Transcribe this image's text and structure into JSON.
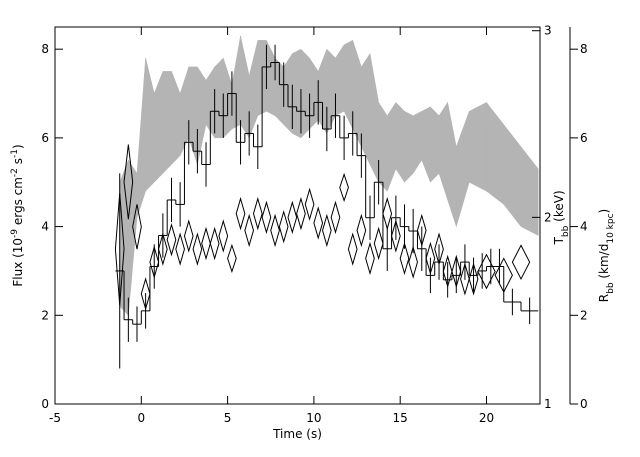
{
  "chart_data": {
    "type": "multi-axis",
    "xlabel": "Time (s)",
    "ylabel": [
      {
        "text": "Flux (10"
      },
      {
        "text": "-9",
        "shift": "super"
      },
      {
        "text": " ergs cm"
      },
      {
        "text": "-2",
        "shift": "super"
      },
      {
        "text": " s"
      },
      {
        "text": "-1",
        "shift": "super"
      },
      {
        "text": ")"
      }
    ],
    "y2label": [
      {
        "text": "T"
      },
      {
        "text": "bb",
        "shift": "sub"
      },
      {
        "text": " (keV)"
      }
    ],
    "y3label": [
      {
        "text": "R"
      },
      {
        "text": "bb",
        "shift": "sub"
      },
      {
        "text": " (km/d"
      },
      {
        "text": "10 kpc",
        "shift": "sub"
      },
      {
        "text": ")"
      }
    ],
    "xlim": [
      -5,
      23.1
    ],
    "xticks": [
      -5,
      0,
      5,
      10,
      15,
      20
    ],
    "ylim": [
      0,
      8.5
    ],
    "yticks": [
      0,
      2,
      4,
      6,
      8
    ],
    "y2lim": [
      1,
      3.02
    ],
    "y2ticks": [
      1,
      2,
      3
    ],
    "y3lim": [
      0,
      8.5
    ],
    "y3ticks": [
      0,
      2,
      4,
      6,
      8
    ],
    "flux": {
      "axis": "y",
      "color": "#000000",
      "x": [
        -1.25,
        -0.75,
        -0.25,
        0.25,
        0.75,
        1.25,
        1.75,
        2.25,
        2.75,
        3.25,
        3.75,
        4.25,
        4.75,
        5.25,
        5.75,
        6.25,
        6.75,
        7.25,
        7.75,
        8.25,
        8.75,
        9.25,
        9.75,
        10.25,
        10.75,
        11.25,
        11.75,
        12.25,
        12.75,
        13.25,
        13.75,
        14.25,
        14.75,
        15.25,
        15.75,
        16.25,
        16.75,
        17.25,
        17.75,
        18.25,
        18.75,
        19.25,
        19.75,
        20.25,
        20.75,
        21.5,
        22.5
      ],
      "widths": [
        0.5,
        0.5,
        0.5,
        0.5,
        0.5,
        0.5,
        0.5,
        0.5,
        0.5,
        0.5,
        0.5,
        0.5,
        0.5,
        0.5,
        0.5,
        0.5,
        0.5,
        0.5,
        0.5,
        0.5,
        0.5,
        0.5,
        0.5,
        0.5,
        0.5,
        0.5,
        0.5,
        0.5,
        0.5,
        0.5,
        0.5,
        0.5,
        0.5,
        0.5,
        0.5,
        0.5,
        0.5,
        0.5,
        0.5,
        0.5,
        0.5,
        0.5,
        0.5,
        0.5,
        0.5,
        1,
        1
      ],
      "values": [
        3.0,
        1.9,
        1.8,
        2.1,
        3.1,
        3.8,
        4.6,
        4.5,
        5.9,
        5.7,
        5.4,
        6.6,
        6.5,
        7.0,
        5.9,
        6.1,
        5.8,
        7.6,
        7.7,
        7.2,
        6.7,
        6.6,
        6.5,
        6.8,
        6.2,
        6.5,
        6.0,
        6.1,
        5.6,
        4.2,
        5.0,
        3.5,
        4.2,
        4.0,
        3.9,
        3.5,
        2.9,
        3.2,
        2.8,
        2.9,
        3.2,
        2.9,
        3.0,
        3.1,
        3.1,
        2.3,
        2.1
      ],
      "errors": [
        2.2,
        0.5,
        0.4,
        0.4,
        0.5,
        0.5,
        0.5,
        0.5,
        0.5,
        0.5,
        0.5,
        0.5,
        0.5,
        0.5,
        0.5,
        0.5,
        0.5,
        0.5,
        0.4,
        0.5,
        0.5,
        0.5,
        0.5,
        0.5,
        0.5,
        0.5,
        0.5,
        0.5,
        0.5,
        0.5,
        0.5,
        0.5,
        0.5,
        0.5,
        0.5,
        0.5,
        0.4,
        0.4,
        0.4,
        0.4,
        0.4,
        0.4,
        0.4,
        0.4,
        0.4,
        0.3,
        0.3
      ]
    },
    "radius": {
      "axis": "y3",
      "color": "#b4b4b4",
      "x": [
        -1.25,
        -0.75,
        -0.25,
        0.25,
        0.75,
        1.25,
        1.75,
        2.25,
        2.75,
        3.25,
        3.75,
        4.25,
        4.75,
        5.25,
        5.75,
        6.25,
        6.75,
        7.25,
        7.75,
        8.25,
        8.75,
        9.25,
        9.75,
        10.25,
        10.75,
        11.25,
        11.75,
        12.25,
        12.75,
        13.25,
        13.75,
        14.25,
        14.75,
        15.25,
        15.75,
        16.25,
        16.75,
        17.25,
        17.75,
        18.25,
        19,
        20,
        21,
        22,
        23
      ],
      "low": [
        2.2,
        2.0,
        4.2,
        4.8,
        5.0,
        5.2,
        5.4,
        5.6,
        6.0,
        5.4,
        6.3,
        6.0,
        6.0,
        6.2,
        6.3,
        6.0,
        6.5,
        6.6,
        6.5,
        6.3,
        6.1,
        6.0,
        6.2,
        6.4,
        6.1,
        6.5,
        6.6,
        6.2,
        5.8,
        5.4,
        5.0,
        4.8,
        5.3,
        5.0,
        5.2,
        5.5,
        5.0,
        5.2,
        4.6,
        4.0,
        5.0,
        4.8,
        4.5,
        4.0,
        3.8
      ],
      "high": [
        5.0,
        5.5,
        5.2,
        7.8,
        7.0,
        7.5,
        7.5,
        7.0,
        7.6,
        7.6,
        7.3,
        7.6,
        7.8,
        7.2,
        8.3,
        7.4,
        8.2,
        8.2,
        7.8,
        7.6,
        7.9,
        8.0,
        7.8,
        7.5,
        8.0,
        7.8,
        8.1,
        8.2,
        7.6,
        7.9,
        6.8,
        6.5,
        6.8,
        6.6,
        6.5,
        6.6,
        6.7,
        6.5,
        6.8,
        5.8,
        6.6,
        6.8,
        6.3,
        5.8,
        5.3
      ]
    },
    "temperature": {
      "axis": "y2",
      "color": "#000000",
      "x": [
        -1.25,
        -0.75,
        -0.25,
        0.25,
        0.75,
        1.25,
        1.75,
        2.25,
        2.75,
        3.25,
        3.75,
        4.25,
        4.75,
        5.25,
        5.75,
        6.25,
        6.75,
        7.25,
        7.75,
        8.25,
        8.75,
        9.25,
        9.75,
        10.25,
        10.75,
        11.25,
        11.75,
        12.25,
        12.75,
        13.25,
        13.75,
        14.25,
        14.75,
        15.25,
        15.75,
        16.25,
        16.75,
        17.25,
        17.75,
        18.25,
        18.75,
        19.25,
        20,
        21,
        22
      ],
      "widths": [
        0.5,
        0.5,
        0.5,
        0.5,
        0.5,
        0.5,
        0.5,
        0.5,
        0.5,
        0.5,
        0.5,
        0.5,
        0.5,
        0.5,
        0.5,
        0.5,
        0.5,
        0.5,
        0.5,
        0.5,
        0.5,
        0.5,
        0.5,
        0.5,
        0.5,
        0.5,
        0.5,
        0.5,
        0.5,
        0.5,
        0.5,
        0.5,
        0.5,
        0.5,
        0.5,
        0.5,
        0.5,
        0.5,
        0.5,
        0.5,
        0.5,
        0.5,
        1,
        1,
        1
      ],
      "values": [
        1.83,
        2.19,
        1.95,
        1.59,
        1.76,
        1.83,
        1.88,
        1.83,
        1.9,
        1.83,
        1.86,
        1.86,
        1.9,
        1.78,
        2.02,
        1.93,
        2.02,
        2.0,
        1.93,
        1.95,
        2.0,
        2.02,
        2.07,
        1.97,
        1.93,
        2.0,
        2.16,
        1.83,
        1.93,
        1.78,
        1.86,
        2.02,
        1.9,
        1.78,
        1.76,
        1.93,
        1.78,
        1.83,
        1.71,
        1.71,
        1.67,
        1.67,
        1.71,
        1.69,
        1.76
      ],
      "errors": [
        0.3,
        0.2,
        0.12,
        0.08,
        0.08,
        0.08,
        0.08,
        0.08,
        0.08,
        0.08,
        0.08,
        0.08,
        0.08,
        0.07,
        0.08,
        0.08,
        0.08,
        0.08,
        0.08,
        0.08,
        0.08,
        0.08,
        0.08,
        0.08,
        0.08,
        0.08,
        0.07,
        0.08,
        0.08,
        0.08,
        0.08,
        0.08,
        0.08,
        0.08,
        0.08,
        0.08,
        0.08,
        0.08,
        0.08,
        0.08,
        0.08,
        0.08,
        0.09,
        0.09,
        0.09
      ]
    }
  }
}
